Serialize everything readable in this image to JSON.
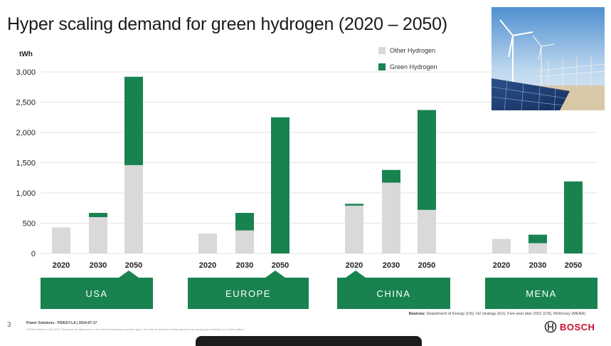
{
  "title": "Hyper scaling demand for green hydrogen (2020 – 2050)",
  "chart_data": {
    "type": "bar",
    "stacked": true,
    "ylabel": "tWh",
    "ylim": [
      0,
      3000
    ],
    "yticks": [
      0,
      500,
      1000,
      1500,
      2000,
      2500,
      3000
    ],
    "ytick_labels": [
      "0",
      "500",
      "1,000",
      "1,500",
      "2,000",
      "2,500",
      "3,000"
    ],
    "grid": true,
    "legend": "top-right",
    "groups": [
      "USA",
      "EUROPE",
      "CHINA",
      "MENA"
    ],
    "categories": [
      "2020",
      "2030",
      "2050"
    ],
    "series": [
      {
        "name": "Other Hydrogen",
        "color": "#d9d9d9",
        "values": [
          [
            430,
            600,
            1460
          ],
          [
            330,
            380,
            0
          ],
          [
            790,
            1170,
            720
          ],
          [
            240,
            170,
            0
          ]
        ]
      },
      {
        "name": "Green Hydrogen",
        "color": "#18834f",
        "values": [
          [
            0,
            70,
            1460
          ],
          [
            0,
            290,
            2250
          ],
          [
            30,
            210,
            1650
          ],
          [
            0,
            140,
            1190
          ]
        ]
      }
    ]
  },
  "legend": {
    "other": "Other Hydrogen",
    "green": "Green Hydrogen"
  },
  "footer": {
    "page_number": "3",
    "line1": "Power Solutions - PS/ESY-LA | 2024-07-17",
    "line2": "© Robert Bosch Ltda 2024. Reserves all rights even in the event of industrial property rights. We reserve all rights of disposal such as copying and passing on to third parties.",
    "sources_label": "Sources:",
    "sources_text": "Department of Energy (US), H2 strategy (EU), Five-year plan 2021 (CN), McKinsey (MENA)",
    "brand": "BOSCH"
  },
  "image": {
    "icon": "wind-solar-energy-photo"
  }
}
